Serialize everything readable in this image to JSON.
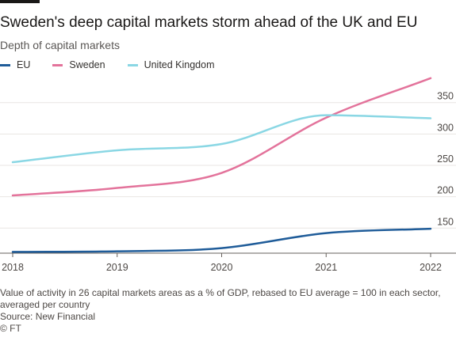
{
  "header": {
    "title": "Sweden's deep capital markets storm ahead of the UK and EU",
    "subtitle": "Depth of capital markets"
  },
  "footer": {
    "note_line1": "Value of activity in 26 capital markets areas as a % of GDP, rebased to EU average = 100 in each sector,",
    "note_line2": "averaged per country",
    "source": "Source: New Financial",
    "copyright": "© FT"
  },
  "colors": {
    "EU": "#1f5c99",
    "Sweden": "#e3739b",
    "United Kingdom": "#8ad7e4",
    "grid": "#e9e6e3",
    "axis": "#66605c"
  },
  "chart_data": {
    "type": "line",
    "x": [
      2018,
      2019,
      2020,
      2021,
      2022
    ],
    "x_tick_labels": [
      "2018",
      "2019",
      "2020",
      "2021",
      "2022"
    ],
    "ylim": [
      110,
      390
    ],
    "y_ticks": [
      150,
      200,
      250,
      300,
      350
    ],
    "grid": true,
    "legend_position": "top-left",
    "series": [
      {
        "name": "EU",
        "values": [
          112,
          113,
          118,
          142,
          149
        ]
      },
      {
        "name": "Sweden",
        "values": [
          202,
          214,
          238,
          326,
          389
        ]
      },
      {
        "name": "United Kingdom",
        "values": [
          255,
          274,
          284,
          330,
          325
        ]
      }
    ]
  }
}
